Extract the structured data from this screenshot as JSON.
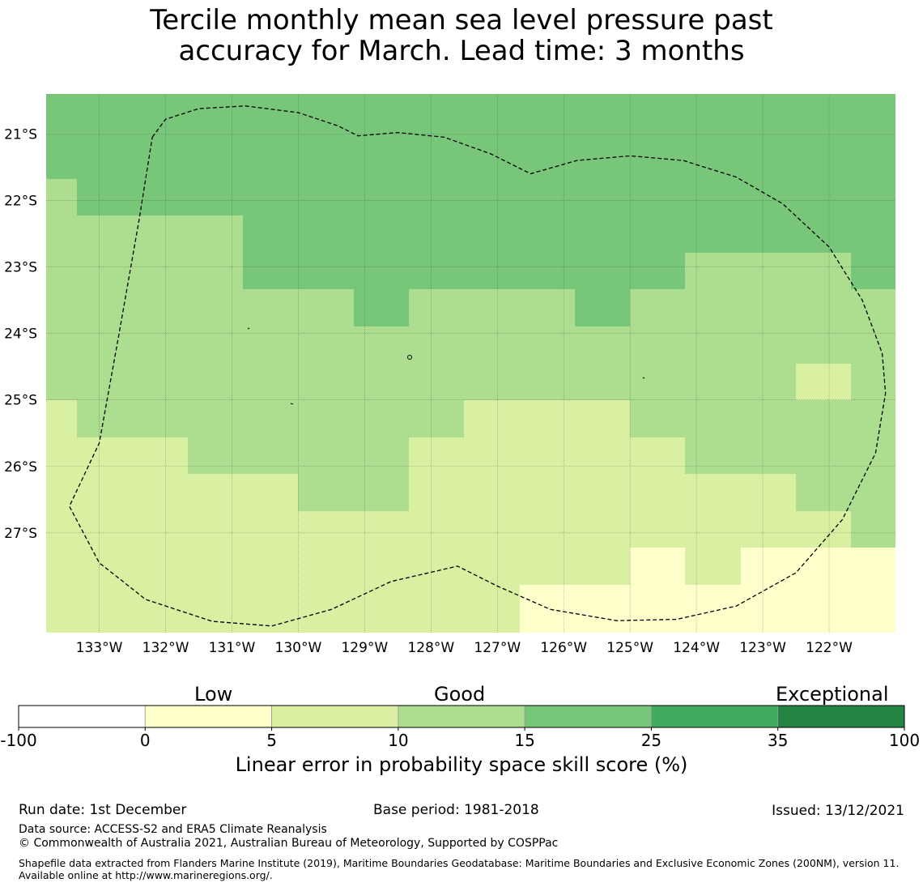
{
  "title": {
    "line1": "Tercile monthly mean sea level pressure past",
    "line2": "accuracy for March. Lead time: 3 months"
  },
  "map": {
    "lon_ticks": [
      "133°W",
      "132°W",
      "131°W",
      "130°W",
      "129°W",
      "128°W",
      "127°W",
      "126°W",
      "125°W",
      "124°W",
      "123°W",
      "122°W"
    ],
    "lat_ticks": [
      "21°S",
      "22°S",
      "23°S",
      "24°S",
      "25°S",
      "26°S",
      "27°S"
    ],
    "lon_range": [
      -133.8,
      -121.0
    ],
    "lat_range": [
      -20.4,
      -28.5
    ],
    "grid_row_edges": [
      -20.4,
      -21.675,
      -22.23,
      -22.785,
      -23.34,
      -23.895,
      -24.45,
      -25.005,
      -25.56,
      -26.115,
      -26.67,
      -27.225,
      -27.78,
      -28.5
    ],
    "grid_col_edges": [
      -133.8,
      -133.333,
      -132.5,
      -131.667,
      -130.833,
      -130.0,
      -129.167,
      -128.333,
      -127.5,
      -126.667,
      -125.833,
      -125.0,
      -124.167,
      -123.333,
      -122.5,
      -121.667,
      -121.0
    ],
    "class_grid": [
      [
        4,
        4,
        4,
        4,
        4,
        4,
        4,
        4,
        4,
        4,
        4,
        4,
        4,
        4,
        4,
        4
      ],
      [
        3,
        4,
        4,
        4,
        4,
        4,
        4,
        4,
        4,
        4,
        4,
        4,
        4,
        4,
        4,
        4
      ],
      [
        3,
        3,
        3,
        3,
        4,
        4,
        4,
        4,
        4,
        4,
        4,
        4,
        4,
        4,
        4,
        4
      ],
      [
        3,
        3,
        3,
        3,
        4,
        4,
        4,
        4,
        4,
        4,
        4,
        4,
        3,
        3,
        3,
        4
      ],
      [
        3,
        3,
        3,
        3,
        3,
        3,
        4,
        3,
        3,
        3,
        4,
        3,
        3,
        3,
        3,
        3
      ],
      [
        3,
        3,
        3,
        3,
        3,
        3,
        3,
        3,
        3,
        3,
        3,
        3,
        3,
        3,
        3,
        3
      ],
      [
        3,
        3,
        3,
        3,
        3,
        3,
        3,
        3,
        3,
        3,
        3,
        3,
        3,
        3,
        2,
        3
      ],
      [
        2,
        3,
        3,
        3,
        3,
        3,
        3,
        3,
        2,
        2,
        2,
        3,
        3,
        3,
        3,
        3
      ],
      [
        2,
        2,
        2,
        3,
        3,
        3,
        3,
        2,
        2,
        2,
        2,
        2,
        3,
        3,
        3,
        3
      ],
      [
        2,
        2,
        2,
        2,
        2,
        3,
        3,
        2,
        2,
        2,
        2,
        2,
        2,
        2,
        3,
        3
      ],
      [
        2,
        2,
        2,
        2,
        2,
        2,
        2,
        2,
        2,
        2,
        2,
        2,
        2,
        2,
        2,
        3
      ],
      [
        2,
        2,
        2,
        2,
        2,
        2,
        2,
        2,
        2,
        2,
        2,
        1,
        2,
        1,
        1,
        1
      ],
      [
        2,
        2,
        2,
        2,
        2,
        2,
        2,
        2,
        2,
        1,
        1,
        1,
        1,
        1,
        1,
        1
      ]
    ],
    "eez_boundary": [
      [
        -132.2,
        -21.05
      ],
      [
        -132.0,
        -20.78
      ],
      [
        -131.5,
        -20.62
      ],
      [
        -130.8,
        -20.58
      ],
      [
        -130.0,
        -20.68
      ],
      [
        -129.4,
        -20.88
      ],
      [
        -129.1,
        -21.03
      ],
      [
        -128.5,
        -20.98
      ],
      [
        -127.8,
        -21.05
      ],
      [
        -127.1,
        -21.3
      ],
      [
        -126.5,
        -21.6
      ],
      [
        -125.8,
        -21.4
      ],
      [
        -125.0,
        -21.33
      ],
      [
        -124.2,
        -21.4
      ],
      [
        -123.4,
        -21.65
      ],
      [
        -122.7,
        -22.05
      ],
      [
        -122.0,
        -22.7
      ],
      [
        -121.5,
        -23.5
      ],
      [
        -121.2,
        -24.3
      ],
      [
        -121.15,
        -24.9
      ],
      [
        -121.3,
        -25.8
      ],
      [
        -121.8,
        -26.8
      ],
      [
        -122.5,
        -27.6
      ],
      [
        -123.4,
        -28.1
      ],
      [
        -124.3,
        -28.3
      ],
      [
        -125.2,
        -28.32
      ],
      [
        -126.2,
        -28.15
      ],
      [
        -127.0,
        -27.8
      ],
      [
        -127.6,
        -27.5
      ],
      [
        -128.6,
        -27.73
      ],
      [
        -129.5,
        -28.15
      ],
      [
        -130.4,
        -28.4
      ],
      [
        -131.3,
        -28.33
      ],
      [
        -132.3,
        -28.0
      ],
      [
        -133.0,
        -27.45
      ],
      [
        -133.45,
        -26.6
      ],
      [
        -133.0,
        -25.65
      ],
      [
        -132.7,
        -24.0
      ],
      [
        -132.4,
        -22.3
      ],
      [
        -132.2,
        -21.05
      ]
    ]
  },
  "colorbar": {
    "categories": [
      "Low",
      "Good",
      "Exceptional"
    ],
    "tick_labels": [
      "-100",
      "0",
      "5",
      "10",
      "15",
      "25",
      "35",
      "100"
    ],
    "colors": [
      "#ffffff",
      "#ffffcc",
      "#d9f0a3",
      "#addd8e",
      "#78c679",
      "#41ab5d",
      "#238443"
    ],
    "xlabel": "Linear error in probability space skill score (%)"
  },
  "footer": {
    "run_date": "Run date: 1st December",
    "base_period": "Base period: 1981-2018",
    "issued": "Issued: 13/12/2021",
    "data_source": "Data source: ACCESS-S2 and ERA5 Climate Reanalysis",
    "copyright": "© Commonwealth of Australia 2021, Australian Bureau of Meteorology, Supported by COSPPac",
    "shapefile": "Shapefile data extracted from Flanders Marine Institute (2019), Maritime Boundaries Geodatabase: Maritime Boundaries and Exclusive Economic Zones (200NM), version 11. Available online at http://www.marineregions.org/."
  }
}
